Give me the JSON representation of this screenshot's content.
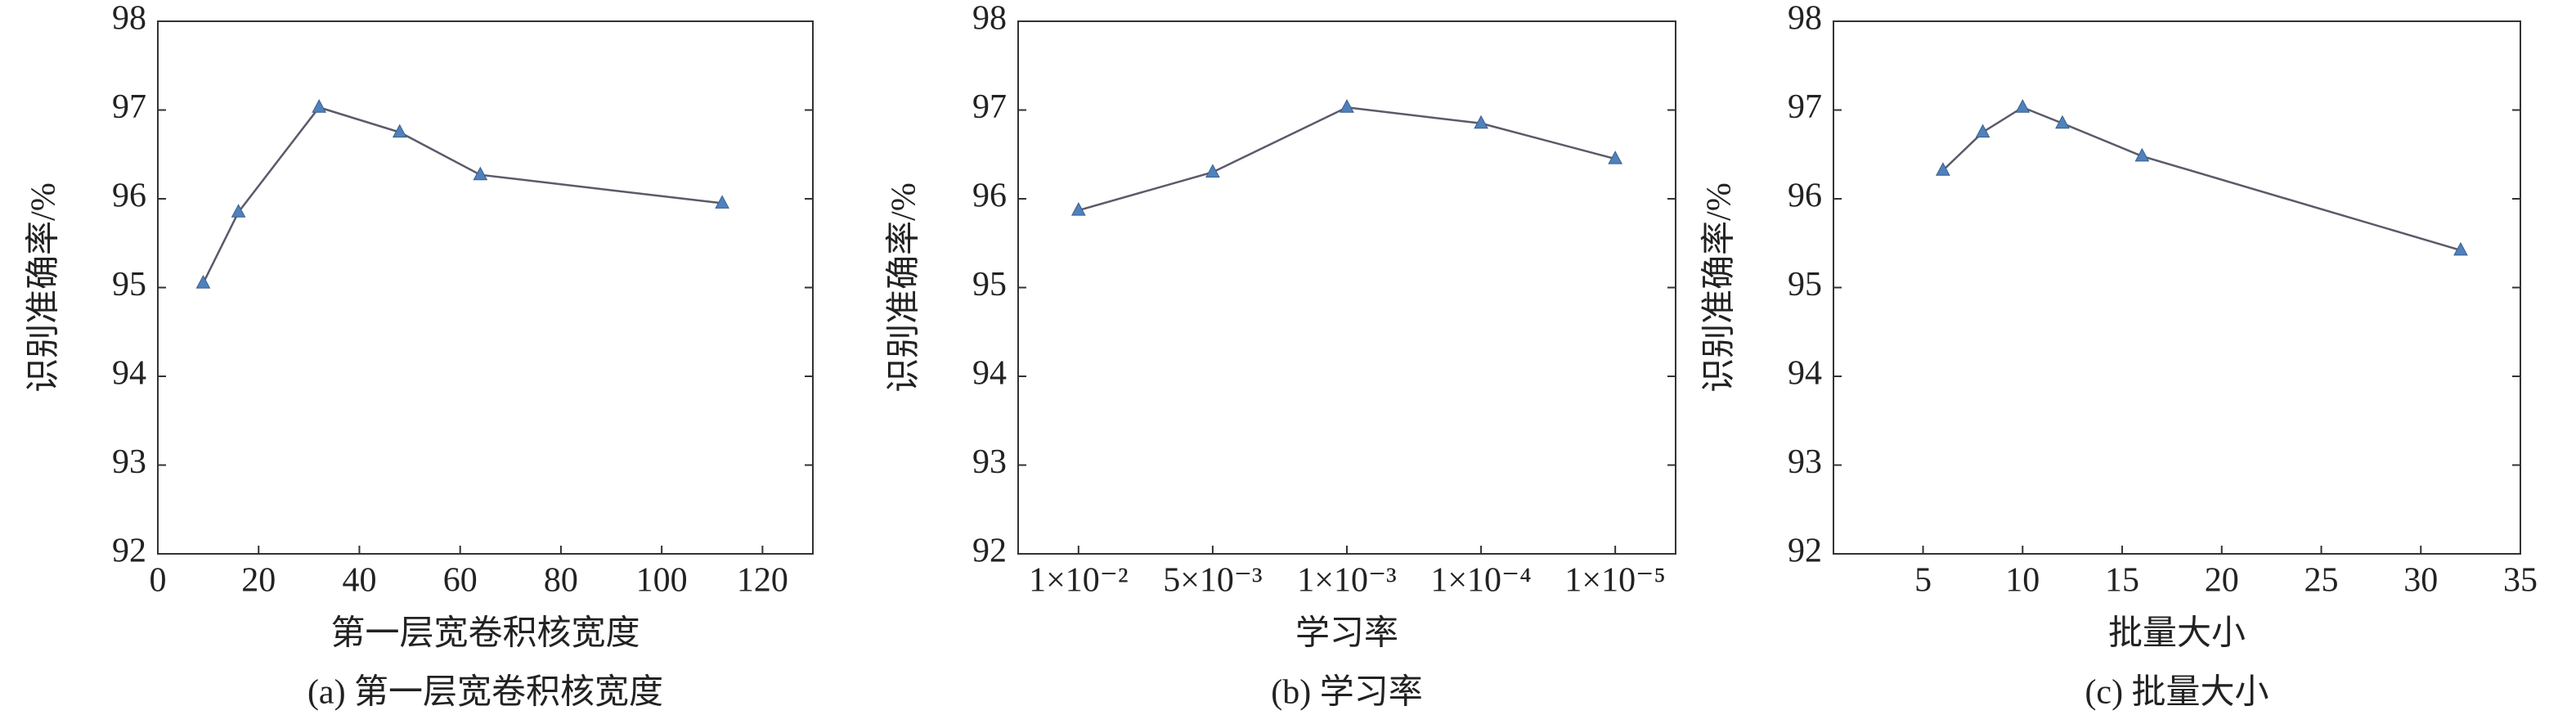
{
  "chart_data": [
    {
      "type": "line",
      "caption": "(a) 第一层宽卷积核宽度",
      "xlabel": "第一层宽卷积核宽度",
      "ylabel": "识别准确率/%",
      "x": [
        9,
        16,
        32,
        48,
        64,
        112
      ],
      "values": [
        95.05,
        95.85,
        97.03,
        96.75,
        96.27,
        95.95
      ],
      "xlim": [
        0,
        130
      ],
      "xticks": [
        0,
        20,
        40,
        60,
        80,
        100,
        120
      ],
      "ylim": [
        92,
        98
      ],
      "yticks": [
        92,
        93,
        94,
        95,
        96,
        97,
        98
      ],
      "color": "#4f81bd",
      "line_color": "#5a5a6a"
    },
    {
      "type": "line",
      "caption": "(b) 学习率",
      "xlabel": "学习率",
      "ylabel": "识别准确率/%",
      "categories": [
        "1×10⁻²",
        "5×10⁻³",
        "1×10⁻³",
        "1×10⁻⁴",
        "1×10⁻⁵"
      ],
      "values": [
        95.87,
        96.3,
        97.03,
        96.85,
        96.45
      ],
      "ylim": [
        92,
        98
      ],
      "yticks": [
        92,
        93,
        94,
        95,
        96,
        97,
        98
      ],
      "color": "#4f81bd",
      "line_color": "#5a5a6a"
    },
    {
      "type": "line",
      "caption": "(c) 批量大小",
      "xlabel": "批量大小",
      "ylabel": "识别准确率/%",
      "x": [
        6,
        8,
        10,
        12,
        16,
        32
      ],
      "values": [
        96.32,
        96.75,
        97.03,
        96.85,
        96.48,
        95.42
      ],
      "xlim": [
        0.5,
        35
      ],
      "xticks": [
        5,
        10,
        15,
        20,
        25,
        30,
        35
      ],
      "ylim": [
        92,
        98
      ],
      "yticks": [
        92,
        93,
        94,
        95,
        96,
        97,
        98
      ],
      "color": "#4f81bd",
      "line_color": "#5a5a6a"
    }
  ]
}
